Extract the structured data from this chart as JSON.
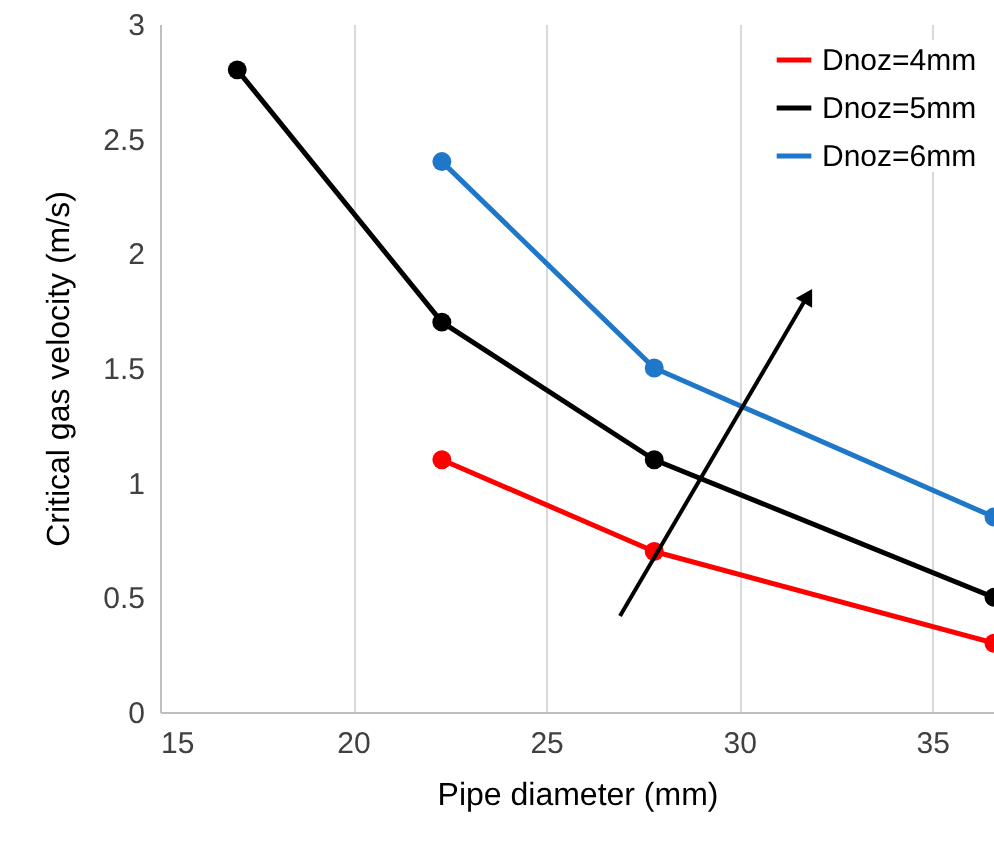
{
  "chart_data": {
    "type": "line",
    "xlabel": "Pipe diameter (mm)",
    "ylabel": "Critical gas velocity (m/s)",
    "series": [
      {
        "name": "Dnoz=4mm",
        "color": "#ff0000",
        "x": [
          22.3,
          27.8,
          36.6
        ],
        "values": [
          1.1,
          0.7,
          0.3
        ]
      },
      {
        "name": "Dnoz=5mm",
        "color": "#000000",
        "x": [
          17,
          22.3,
          27.8,
          36.6
        ],
        "values": [
          2.8,
          1.7,
          1.1,
          0.5
        ]
      },
      {
        "name": "Dnoz=6mm",
        "color": "#1f77c9",
        "x": [
          22.3,
          27.8,
          36.6
        ],
        "values": [
          2.4,
          1.5,
          0.85
        ]
      }
    ],
    "xlim": [
      15,
      36.6
    ],
    "xticks": [
      15,
      20,
      25,
      30,
      35
    ],
    "ylim": [
      0,
      3
    ],
    "yticks": [
      0,
      0.5,
      1,
      1.5,
      2,
      2.5,
      3
    ],
    "grid": "x",
    "legend": "top right",
    "marker": "circle",
    "line_style": "solid"
  }
}
